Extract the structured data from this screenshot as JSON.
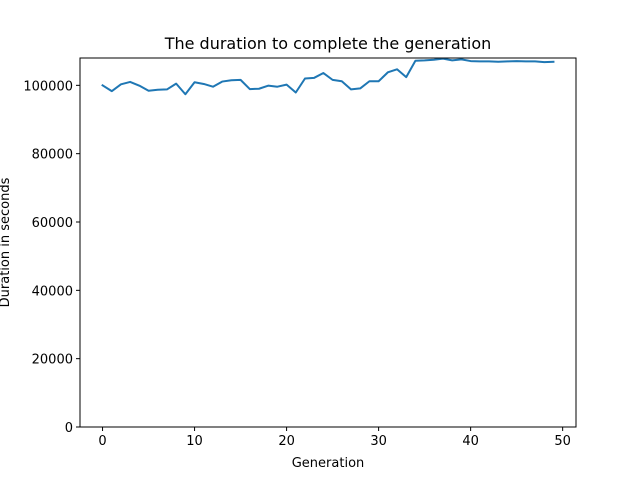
{
  "chart_data": {
    "type": "line",
    "title": "The duration to complete the generation",
    "xlabel": "Generation",
    "ylabel": "Duration in seconds",
    "xlim": [
      -2.45,
      51.45
    ],
    "ylim": [
      0,
      108000
    ],
    "xticks": [
      0,
      10,
      20,
      30,
      40,
      50
    ],
    "yticks": [
      0,
      20000,
      40000,
      60000,
      80000,
      100000
    ],
    "grid": false,
    "series": [
      {
        "color": "#1f77b4",
        "x": [
          0,
          1,
          2,
          3,
          4,
          5,
          6,
          7,
          8,
          9,
          10,
          11,
          12,
          13,
          14,
          15,
          16,
          17,
          18,
          19,
          20,
          21,
          22,
          23,
          24,
          25,
          26,
          27,
          28,
          29,
          30,
          31,
          32,
          33,
          34,
          35,
          36,
          37,
          38,
          39,
          40,
          41,
          42,
          43,
          44,
          45,
          46,
          47,
          48,
          49
        ],
        "y": [
          100000,
          98300,
          100300,
          101000,
          99900,
          98400,
          98700,
          98800,
          100500,
          97400,
          100900,
          100400,
          99600,
          101100,
          101500,
          101600,
          98900,
          99000,
          99900,
          99600,
          100200,
          97900,
          102000,
          102200,
          103600,
          101600,
          101200,
          98800,
          99100,
          101200,
          101200,
          103800,
          104700,
          102400,
          107200,
          107300,
          107500,
          107800,
          107300,
          107600,
          107100,
          107000,
          107000,
          106900,
          107000,
          107100,
          107000,
          107000,
          106800,
          106900
        ]
      }
    ]
  }
}
